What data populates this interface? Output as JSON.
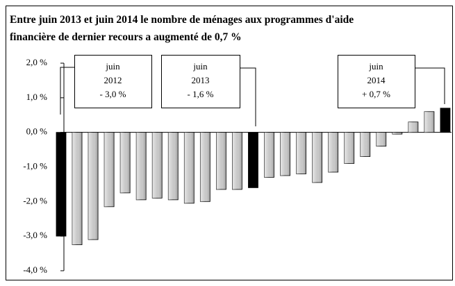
{
  "chart_data": {
    "type": "bar",
    "title_lines": [
      "Entre juin 2013 et juin 2014 le nombre de ménages aux programmes d'aide",
      "financière de dernier recours a augmenté de 0,7 %"
    ],
    "categories": [
      null,
      null,
      null,
      null,
      null,
      null,
      null,
      null,
      null,
      null,
      null,
      null,
      null,
      null,
      null,
      null,
      null,
      null,
      null,
      null,
      null,
      null,
      null,
      null,
      null
    ],
    "values": [
      -3.0,
      -3.25,
      -3.1,
      -2.15,
      -1.75,
      -1.95,
      -1.9,
      -1.95,
      -2.05,
      -2.0,
      -1.65,
      -1.65,
      -1.6,
      -1.3,
      -1.25,
      -1.2,
      -1.45,
      -1.15,
      -0.9,
      -0.7,
      -0.4,
      -0.05,
      0.3,
      0.6,
      0.7
    ],
    "colors": [
      "#000000",
      "#c8c8c8",
      "#c8c8c8",
      "#c8c8c8",
      "#c8c8c8",
      "#c8c8c8",
      "#c8c8c8",
      "#c8c8c8",
      "#c8c8c8",
      "#c8c8c8",
      "#c8c8c8",
      "#c8c8c8",
      "#000000",
      "#c8c8c8",
      "#c8c8c8",
      "#c8c8c8",
      "#c8c8c8",
      "#c8c8c8",
      "#c8c8c8",
      "#c8c8c8",
      "#c8c8c8",
      "#c8c8c8",
      "#c8c8c8",
      "#c8c8c8",
      "#000000"
    ],
    "ylim": [
      -4,
      2
    ],
    "yticks": [
      {
        "value": 2,
        "label": "2,0 %"
      },
      {
        "value": 1,
        "label": "1,0 %"
      },
      {
        "value": 0,
        "label": "0,0 %"
      },
      {
        "value": -1,
        "label": "-1,0 %"
      },
      {
        "value": -2,
        "label": "-2,0 %"
      },
      {
        "value": -3,
        "label": "-3,0 %"
      },
      {
        "value": -4,
        "label": "-4,0 %"
      }
    ],
    "annotations": [
      {
        "lines": [
          "juin",
          "2012",
          "- 3,0 %"
        ]
      },
      {
        "lines": [
          "juin",
          "2013",
          "- 1,6 %"
        ]
      },
      {
        "lines": [
          "juin",
          "2014",
          "+ 0,7 %"
        ]
      }
    ]
  }
}
